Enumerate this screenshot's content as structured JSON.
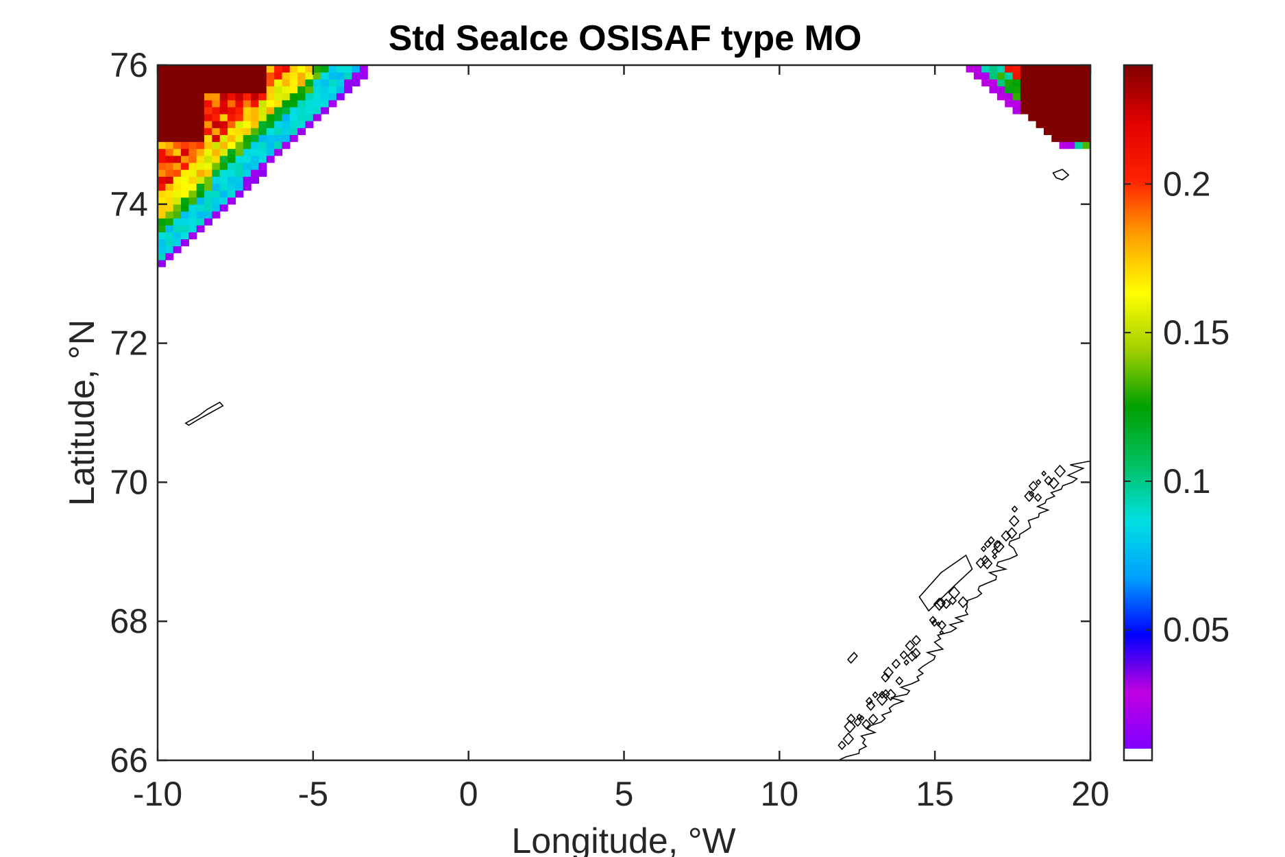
{
  "chart_data": {
    "type": "heatmap",
    "title": "Std SeaIce OSISAF type MO",
    "xlabel": "Longitude, °W",
    "ylabel": "Latitude, °N",
    "xlim": [
      -10,
      20
    ],
    "ylim": [
      66,
      76
    ],
    "xticks": [
      -10,
      -5,
      0,
      5,
      10,
      15,
      20
    ],
    "yticks": [
      66,
      68,
      70,
      72,
      74,
      76
    ],
    "colorbar": {
      "colormap": "jet-like",
      "range": [
        0.01,
        0.24
      ],
      "ticks": [
        0.05,
        0.1,
        0.15,
        0.2
      ],
      "stops": [
        "#7f00ff",
        "#c000e0",
        "#0000ff",
        "#00a0ff",
        "#00e0e0",
        "#00c060",
        "#00a000",
        "#a0d000",
        "#ffff00",
        "#ffa000",
        "#ff2000",
        "#e00000",
        "#800000"
      ]
    },
    "field_regions": [
      {
        "description_of_values": "high std along Greenland ice edge (NW corner)",
        "lon_range": [
          -10,
          -2.6
        ],
        "lat_range": [
          72.9,
          76
        ]
      },
      {
        "description_of_values": "high std near Svalbard (NE corner)",
        "lon_range": [
          15,
          20
        ],
        "lat_range": [
          74.6,
          76
        ]
      }
    ],
    "coastlines": [
      "Jan Mayen",
      "Bear Island",
      "Norway coast"
    ]
  }
}
